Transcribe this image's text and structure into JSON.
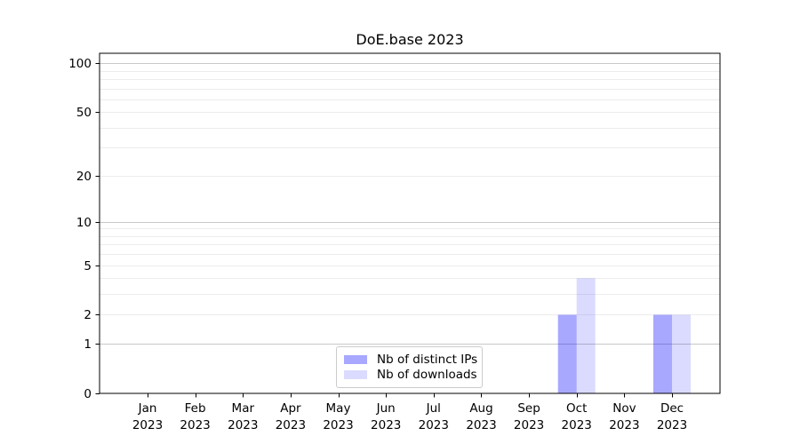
{
  "chart_data": {
    "type": "bar",
    "title": "DoE.base 2023",
    "categories": [
      {
        "month": "Jan",
        "year": "2023"
      },
      {
        "month": "Feb",
        "year": "2023"
      },
      {
        "month": "Mar",
        "year": "2023"
      },
      {
        "month": "Apr",
        "year": "2023"
      },
      {
        "month": "May",
        "year": "2023"
      },
      {
        "month": "Jun",
        "year": "2023"
      },
      {
        "month": "Jul",
        "year": "2023"
      },
      {
        "month": "Aug",
        "year": "2023"
      },
      {
        "month": "Sep",
        "year": "2023"
      },
      {
        "month": "Oct",
        "year": "2023"
      },
      {
        "month": "Nov",
        "year": "2023"
      },
      {
        "month": "Dec",
        "year": "2023"
      }
    ],
    "series": [
      {
        "name": "Nb of distinct IPs",
        "color": "#0000ff",
        "alpha": 0.34,
        "values": [
          0,
          0,
          0,
          0,
          0,
          0,
          0,
          0,
          0,
          2,
          0,
          2
        ]
      },
      {
        "name": "Nb of downloads",
        "color": "#0000ff",
        "alpha": 0.14,
        "values": [
          0,
          0,
          0,
          0,
          0,
          0,
          0,
          0,
          0,
          4,
          0,
          2
        ]
      }
    ],
    "y_ticks": [
      {
        "value": 0,
        "label": "0"
      },
      {
        "value": 1,
        "label": "1"
      },
      {
        "value": 2,
        "label": "2"
      },
      {
        "value": 5,
        "label": "5"
      },
      {
        "value": 10,
        "label": "10"
      },
      {
        "value": 20,
        "label": "20"
      },
      {
        "value": 50,
        "label": "50"
      },
      {
        "value": 100,
        "label": "100"
      }
    ],
    "ylim": [
      0,
      115
    ],
    "scale": "log10(1+y)",
    "grid": {
      "major": [
        1,
        10,
        100
      ],
      "minor": [
        2,
        3,
        4,
        5,
        6,
        7,
        8,
        9,
        20,
        30,
        40,
        50,
        60,
        70,
        80,
        90
      ],
      "major_color": "#c8c8c8",
      "minor_color": "#ececec"
    },
    "axis_color": "#000000",
    "legend_position": "lower center"
  }
}
